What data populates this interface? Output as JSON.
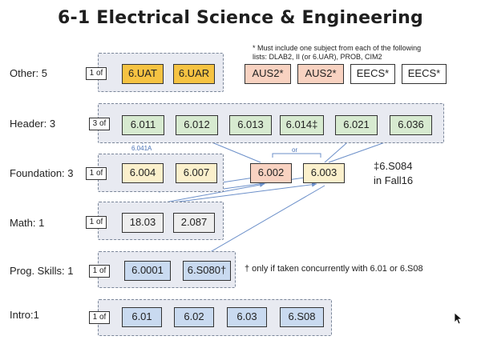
{
  "title": "6-1 Electrical Science & Engineering",
  "note_line1": "* Must include one subject from each of the following",
  "note_line2": "lists: DLAB2, II (or 6.UAR), PROB, CIM2",
  "rows": {
    "other": {
      "label": "Other: 5",
      "of": "1 of",
      "subjects": [
        "6.UAT",
        "6.UAR"
      ],
      "extra": [
        "AUS2*",
        "AUS2*",
        "EECS*",
        "EECS*"
      ]
    },
    "header": {
      "label": "Header: 3",
      "of": "3 of",
      "subjects": [
        "6.011",
        "6.012",
        "6.013",
        "6.014‡",
        "6.021",
        "6.036"
      ],
      "annotation": "6.041A"
    },
    "foundation": {
      "label": "Foundation: 3",
      "of": "1 of",
      "subjects": [
        "6.004",
        "6.007"
      ],
      "extra": [
        "6.002",
        "6.003"
      ],
      "or_label": "or"
    },
    "math": {
      "label": "Math: 1",
      "of": "1 of",
      "subjects": [
        "18.03",
        "2.087"
      ]
    },
    "prog": {
      "label": "Prog. Skills: 1",
      "of": "1 of",
      "subjects": [
        "6.0001",
        "6.S080†"
      ]
    },
    "intro": {
      "label": "Intro:1",
      "of": "1 of",
      "subjects": [
        "6.01",
        "6.02",
        "6.03",
        "6.S08"
      ]
    }
  },
  "side_note_1": "‡6.S084",
  "side_note_2": "in Fall16",
  "prog_note": "† only if taken concurrently with 6.01 or 6.S08",
  "colors": {
    "gold": "#f6c342",
    "peach": "#f8d2c1",
    "green": "#d7ead0",
    "blue": "#c9daf0",
    "arrow": "#6b8fc9"
  }
}
